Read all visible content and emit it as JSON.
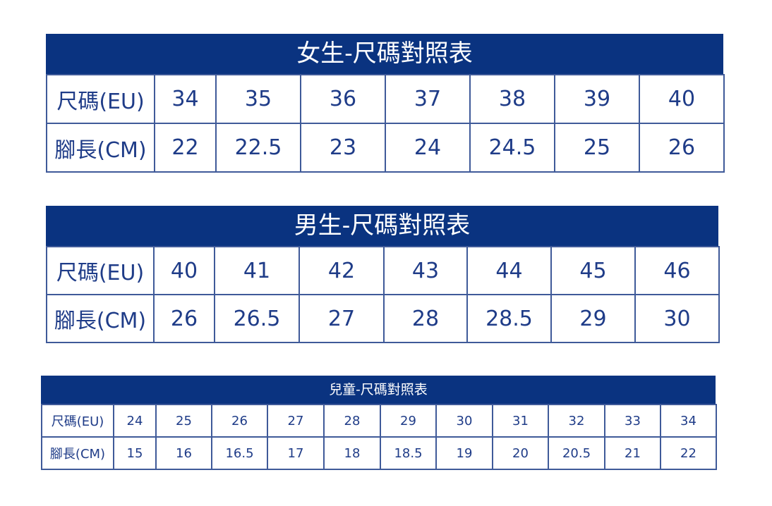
{
  "charts": [
    {
      "id": "women",
      "title": "女生-尺碼對照表",
      "row_labels": [
        "尺碼(EU)",
        "腳長(CM)"
      ],
      "sizes_eu": [
        "34",
        "35",
        "36",
        "37",
        "38",
        "39",
        "40"
      ],
      "foot_length_cm": [
        "22",
        "22.5",
        "23",
        "24",
        "24.5",
        "25",
        "26"
      ]
    },
    {
      "id": "men",
      "title": "男生-尺碼對照表",
      "row_labels": [
        "尺碼(EU)",
        "腳長(CM)"
      ],
      "sizes_eu": [
        "40",
        "41",
        "42",
        "43",
        "44",
        "45",
        "46"
      ],
      "foot_length_cm": [
        "26",
        "26.5",
        "27",
        "28",
        "28.5",
        "29",
        "30"
      ]
    },
    {
      "id": "kids",
      "title": "兒童-尺碼對照表",
      "row_labels": [
        "尺碼(EU)",
        "腳長(CM)"
      ],
      "sizes_eu": [
        "24",
        "25",
        "26",
        "27",
        "28",
        "29",
        "30",
        "31",
        "32",
        "33",
        "34"
      ],
      "foot_length_cm": [
        "15",
        "16",
        "16.5",
        "17",
        "18",
        "18.5",
        "19",
        "20",
        "20.5",
        "21",
        "22"
      ]
    }
  ],
  "colors": {
    "header_bg": "#0a3380",
    "text": "#1f3c88",
    "border": "#3f5a99"
  }
}
